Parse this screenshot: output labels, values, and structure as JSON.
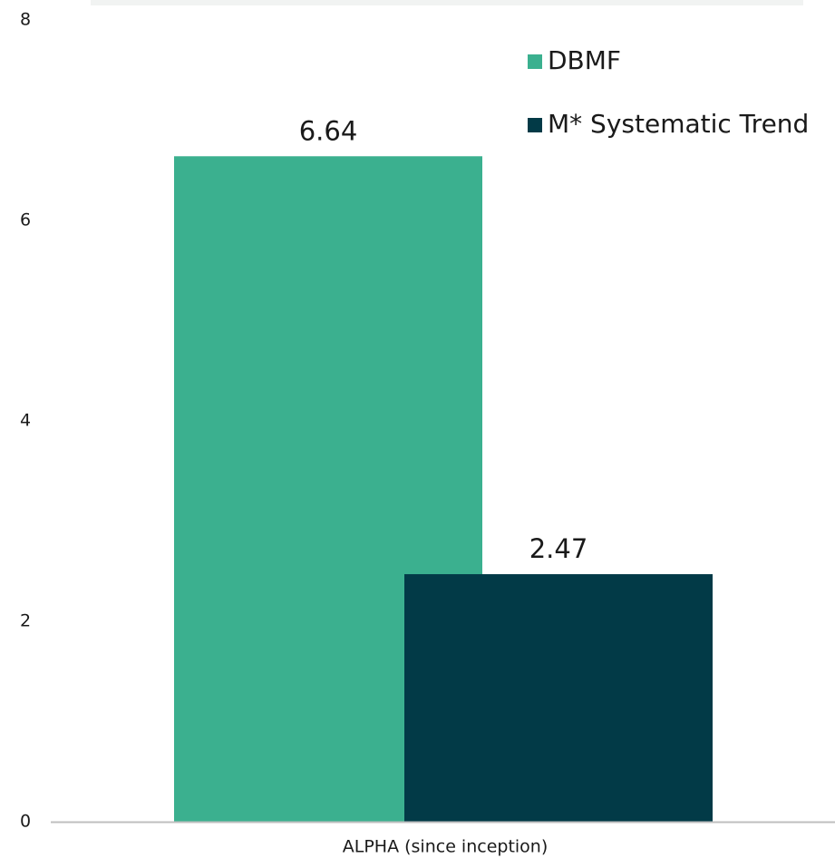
{
  "chart_data": {
    "type": "bar",
    "categories": [
      "ALPHA (since inception)"
    ],
    "series": [
      {
        "name": "DBMF",
        "values": [
          6.64
        ],
        "color": "#3BB08F",
        "label": "6.64"
      },
      {
        "name": "M* Systematic Trend",
        "values": [
          2.47
        ],
        "color": "#023A47",
        "label": "2.47"
      }
    ],
    "ylim": [
      0,
      8
    ],
    "yticks": [
      0,
      2,
      4,
      6,
      8
    ],
    "grid": false,
    "legend_position": "top-right",
    "title": "",
    "xlabel": "",
    "ylabel": ""
  }
}
